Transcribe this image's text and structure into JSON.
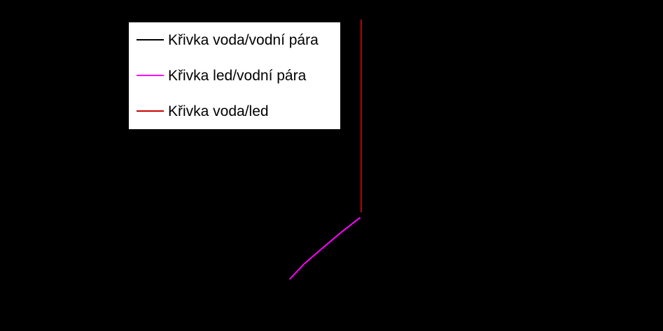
{
  "chart_data": {
    "type": "line",
    "title": "",
    "xlabel": "",
    "ylabel": "",
    "yscale": "log",
    "xlim": [
      -150,
      150
    ],
    "ylim": [
      1e-06,
      1000
    ],
    "grid": false,
    "legend_position": "top-left",
    "series": [
      {
        "name": "Křivka voda/vodní pára",
        "color": "#000000",
        "points": []
      },
      {
        "name": "Křivka led/vodní pára",
        "color": "#ff00ff",
        "points": [
          {
            "x": -38,
            "y": 1e-06
          },
          {
            "x": -30,
            "y": 3.5e-06
          },
          {
            "x": -20,
            "y": 1.26e-05
          },
          {
            "x": -10,
            "y": 4.36e-05
          },
          {
            "x": 0,
            "y": 0.000139
          }
        ]
      },
      {
        "name": "Křivka voda/led",
        "color": "#cc0000",
        "points": [
          {
            "x": 0.5,
            "y": 0.00021
          },
          {
            "x": 0.5,
            "y": 1000
          }
        ]
      }
    ]
  }
}
